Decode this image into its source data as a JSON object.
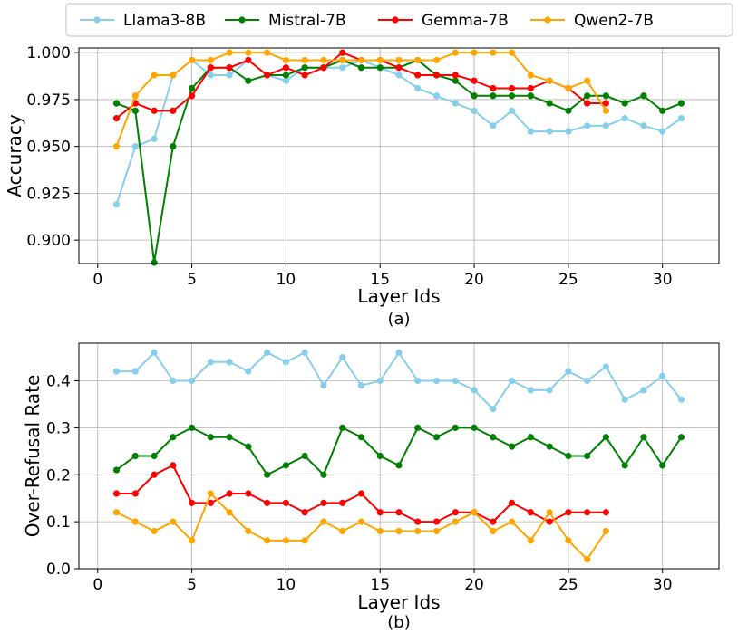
{
  "legend": [
    {
      "name": "Llama3-8B",
      "color": "#87CEEB"
    },
    {
      "name": "Mistral-7B",
      "color": "#008000"
    },
    {
      "name": "Gemma-7B",
      "color": "#FF0000"
    },
    {
      "name": "Qwen2-7B",
      "color": "#FFA500"
    }
  ],
  "chart_data": [
    {
      "type": "line",
      "panel": "a",
      "caption": "(a)",
      "xlabel": "Layer Ids",
      "ylabel": "Accuracy",
      "xlim": [
        -1,
        33
      ],
      "ylim": [
        0.8875,
        1.0025
      ],
      "xticks": [
        0,
        5,
        10,
        15,
        20,
        25,
        30
      ],
      "xtick_labels": [
        "0",
        "5",
        "10",
        "15",
        "20",
        "25",
        "30"
      ],
      "yticks": [
        0.9,
        0.925,
        0.95,
        0.975,
        1.0
      ],
      "ytick_labels": [
        "0.900",
        "0.925",
        "0.950",
        "0.975",
        "1.000"
      ],
      "grid": true,
      "series": [
        {
          "name": "Llama3-8B",
          "color": "#87CEEB",
          "x": [
            1,
            2,
            3,
            4,
            5,
            6,
            7,
            8,
            9,
            10,
            11,
            12,
            13,
            14,
            15,
            16,
            17,
            18,
            19,
            20,
            21,
            22,
            23,
            24,
            25,
            26,
            27,
            28,
            29,
            30,
            31
          ],
          "y": [
            0.919,
            0.95,
            0.954,
            0.988,
            0.996,
            0.988,
            0.988,
            0.996,
            0.988,
            0.985,
            0.992,
            0.992,
            0.992,
            0.996,
            0.992,
            0.988,
            0.981,
            0.977,
            0.973,
            0.969,
            0.961,
            0.969,
            0.958,
            0.958,
            0.958,
            0.961,
            0.961,
            0.965,
            0.961,
            0.958,
            0.965
          ]
        },
        {
          "name": "Mistral-7B",
          "color": "#008000",
          "x": [
            1,
            2,
            3,
            4,
            5,
            6,
            7,
            8,
            9,
            10,
            11,
            12,
            13,
            14,
            15,
            16,
            17,
            18,
            19,
            20,
            21,
            22,
            23,
            24,
            25,
            26,
            27,
            28,
            29,
            30,
            31
          ],
          "y": [
            0.973,
            0.969,
            0.888,
            0.95,
            0.981,
            0.992,
            0.992,
            0.985,
            0.988,
            0.988,
            0.992,
            0.992,
            0.996,
            0.992,
            0.992,
            0.992,
            0.996,
            0.988,
            0.985,
            0.977,
            0.977,
            0.977,
            0.977,
            0.973,
            0.969,
            0.977,
            0.977,
            0.973,
            0.977,
            0.969,
            0.973
          ]
        },
        {
          "name": "Gemma-7B",
          "color": "#FF0000",
          "x": [
            1,
            2,
            3,
            4,
            5,
            6,
            7,
            8,
            9,
            10,
            11,
            12,
            13,
            14,
            15,
            16,
            17,
            18,
            19,
            20,
            21,
            22,
            23,
            24,
            25,
            26,
            27
          ],
          "y": [
            0.965,
            0.973,
            0.969,
            0.969,
            0.977,
            0.992,
            0.992,
            0.996,
            0.988,
            0.992,
            0.988,
            0.992,
            1.0,
            0.996,
            0.996,
            0.992,
            0.988,
            0.988,
            0.988,
            0.985,
            0.981,
            0.981,
            0.981,
            0.985,
            0.981,
            0.973,
            0.973
          ]
        },
        {
          "name": "Qwen2-7B",
          "color": "#FFA500",
          "x": [
            1,
            2,
            3,
            4,
            5,
            6,
            7,
            8,
            9,
            10,
            11,
            12,
            13,
            14,
            15,
            16,
            17,
            18,
            19,
            20,
            21,
            22,
            23,
            24,
            25,
            26,
            27
          ],
          "y": [
            0.95,
            0.977,
            0.988,
            0.988,
            0.996,
            0.996,
            1.0,
            1.0,
            1.0,
            0.996,
            0.996,
            0.996,
            0.996,
            0.996,
            0.996,
            0.996,
            0.996,
            0.996,
            1.0,
            1.0,
            1.0,
            1.0,
            0.988,
            0.985,
            0.981,
            0.985,
            0.969
          ]
        }
      ]
    },
    {
      "type": "line",
      "panel": "b",
      "caption": "(b)",
      "xlabel": "Layer Ids",
      "ylabel": "Over-Refusal Rate",
      "xlim": [
        -1,
        33
      ],
      "ylim": [
        0.0,
        0.48
      ],
      "xticks": [
        0,
        5,
        10,
        15,
        20,
        25,
        30
      ],
      "xtick_labels": [
        "0",
        "5",
        "10",
        "15",
        "20",
        "25",
        "30"
      ],
      "yticks": [
        0.0,
        0.1,
        0.2,
        0.3,
        0.4
      ],
      "ytick_labels": [
        "0.0",
        "0.1",
        "0.2",
        "0.3",
        "0.4"
      ],
      "grid": true,
      "series": [
        {
          "name": "Llama3-8B",
          "color": "#87CEEB",
          "x": [
            1,
            2,
            3,
            4,
            5,
            6,
            7,
            8,
            9,
            10,
            11,
            12,
            13,
            14,
            15,
            16,
            17,
            18,
            19,
            20,
            21,
            22,
            23,
            24,
            25,
            26,
            27,
            28,
            29,
            30,
            31
          ],
          "y": [
            0.42,
            0.42,
            0.46,
            0.4,
            0.4,
            0.44,
            0.44,
            0.42,
            0.46,
            0.44,
            0.46,
            0.39,
            0.45,
            0.39,
            0.4,
            0.46,
            0.4,
            0.4,
            0.4,
            0.38,
            0.34,
            0.4,
            0.38,
            0.38,
            0.42,
            0.4,
            0.43,
            0.36,
            0.38,
            0.41,
            0.36
          ]
        },
        {
          "name": "Mistral-7B",
          "color": "#008000",
          "x": [
            1,
            2,
            3,
            4,
            5,
            6,
            7,
            8,
            9,
            10,
            11,
            12,
            13,
            14,
            15,
            16,
            17,
            18,
            19,
            20,
            21,
            22,
            23,
            24,
            25,
            26,
            27,
            28,
            29,
            30,
            31
          ],
          "y": [
            0.21,
            0.24,
            0.24,
            0.28,
            0.3,
            0.28,
            0.28,
            0.26,
            0.2,
            0.22,
            0.24,
            0.2,
            0.3,
            0.28,
            0.24,
            0.22,
            0.3,
            0.28,
            0.3,
            0.3,
            0.28,
            0.26,
            0.28,
            0.26,
            0.24,
            0.24,
            0.28,
            0.22,
            0.28,
            0.22,
            0.28
          ]
        },
        {
          "name": "Gemma-7B",
          "color": "#FF0000",
          "x": [
            1,
            2,
            3,
            4,
            5,
            6,
            7,
            8,
            9,
            10,
            11,
            12,
            13,
            14,
            15,
            16,
            17,
            18,
            19,
            20,
            21,
            22,
            23,
            24,
            25,
            26,
            27
          ],
          "y": [
            0.16,
            0.16,
            0.2,
            0.22,
            0.14,
            0.14,
            0.16,
            0.16,
            0.14,
            0.14,
            0.12,
            0.14,
            0.14,
            0.16,
            0.12,
            0.12,
            0.1,
            0.1,
            0.12,
            0.12,
            0.1,
            0.14,
            0.12,
            0.1,
            0.12,
            0.12,
            0.12
          ]
        },
        {
          "name": "Qwen2-7B",
          "color": "#FFA500",
          "x": [
            1,
            2,
            3,
            4,
            5,
            6,
            7,
            8,
            9,
            10,
            11,
            12,
            13,
            14,
            15,
            16,
            17,
            18,
            19,
            20,
            21,
            22,
            23,
            24,
            25,
            26,
            27
          ],
          "y": [
            0.12,
            0.1,
            0.08,
            0.1,
            0.06,
            0.16,
            0.12,
            0.08,
            0.06,
            0.06,
            0.06,
            0.1,
            0.08,
            0.1,
            0.08,
            0.08,
            0.08,
            0.08,
            0.1,
            0.12,
            0.08,
            0.1,
            0.06,
            0.12,
            0.06,
            0.02,
            0.08
          ]
        }
      ]
    }
  ]
}
